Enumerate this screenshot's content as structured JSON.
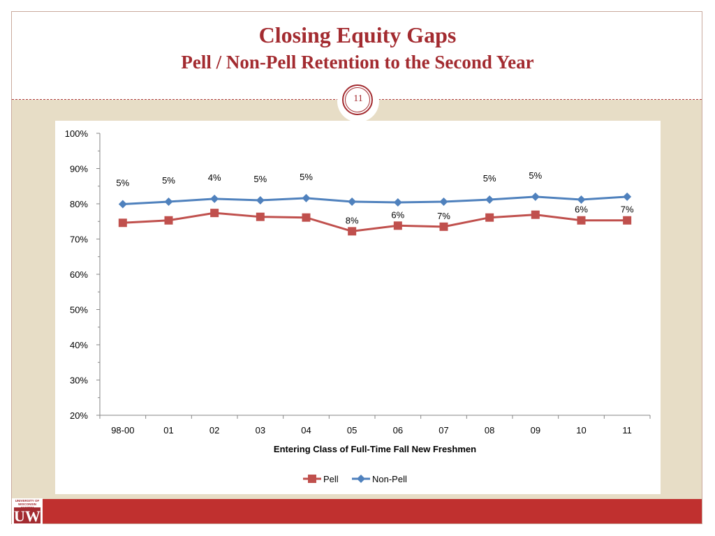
{
  "slide": {
    "title": "Closing Equity Gaps",
    "subtitle": "Pell / Non-Pell Retention to the Second Year",
    "page_number": "11",
    "logo_text": "UNIVERSITY OF WISCONSIN SYSTEM",
    "logo_mark": "UW"
  },
  "colors": {
    "title": "#a32b30",
    "pell": "#c0504d",
    "non_pell": "#4f81bd",
    "footer": "#c0302f",
    "background": "#e7ddc6"
  },
  "chart_data": {
    "type": "line",
    "title": "",
    "xlabel": "Entering Class of Full-Time Fall New Freshmen",
    "ylabel": "",
    "categories": [
      "98-00",
      "01",
      "02",
      "03",
      "04",
      "05",
      "06",
      "07",
      "08",
      "09",
      "10",
      "11"
    ],
    "ylim": [
      20,
      100
    ],
    "y_ticks": [
      "20%",
      "30%",
      "40%",
      "50%",
      "60%",
      "70%",
      "80%",
      "90%",
      "100%"
    ],
    "series": [
      {
        "name": "Pell",
        "marker": "square",
        "color": "#c0504d",
        "values": [
          74.6,
          75.3,
          77.4,
          76.3,
          76.1,
          72.2,
          73.8,
          73.5,
          76.1,
          76.9,
          75.3,
          75.3
        ]
      },
      {
        "name": "Non-Pell",
        "marker": "diamond",
        "color": "#4f81bd",
        "values": [
          79.9,
          80.6,
          81.4,
          81.0,
          81.6,
          80.6,
          80.4,
          80.6,
          81.2,
          82.0,
          81.2,
          82.0
        ]
      }
    ],
    "gap_labels": [
      "5%",
      "5%",
      "4%",
      "5%",
      "5%",
      "8%",
      "6%",
      "7%",
      "5%",
      "5%",
      "6%",
      "7%"
    ],
    "gap_label_placement": [
      "above",
      "above",
      "above",
      "above",
      "above",
      "below",
      "below",
      "below",
      "above",
      "above",
      "below",
      "below"
    ],
    "legend": "bottom",
    "grid": false
  }
}
